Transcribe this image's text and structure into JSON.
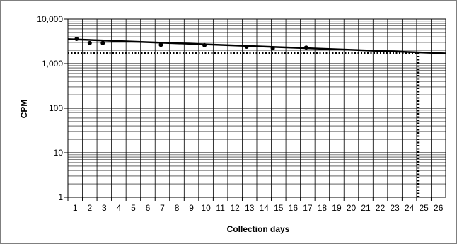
{
  "chart_data": {
    "type": "scatter",
    "title": "",
    "xlabel": "Collection days",
    "ylabel": "CPM",
    "x_categories": [
      "1",
      "2",
      "3",
      "4",
      "5",
      "6",
      "7",
      "8",
      "9",
      "10",
      "11",
      "12",
      "13",
      "14",
      "15",
      "16",
      "17",
      "18",
      "19",
      "20",
      "21",
      "22",
      "23",
      "24",
      "25",
      "26"
    ],
    "y_scale": "log",
    "ylim": [
      1,
      10000
    ],
    "y_tick_values": [
      1,
      10,
      100,
      1000,
      10000
    ],
    "y_tick_labels": [
      "1",
      "10",
      "100",
      "1,000",
      "10,000"
    ],
    "grid": true,
    "series": [
      {
        "kind": "points",
        "x": [
          1.1,
          2.0,
          2.9,
          6.9,
          9.9,
          12.8,
          14.6,
          16.9
        ],
        "y": [
          3600,
          2900,
          2900,
          2650,
          2600,
          2400,
          2200,
          2300
        ]
      },
      {
        "kind": "trend",
        "x": [
          0.5,
          26.5
        ],
        "y": [
          3550,
          1700
        ]
      }
    ],
    "reference_lines": [
      {
        "orientation": "horizontal",
        "y": 1750,
        "x_from": 0.5,
        "x_to": 24.6,
        "style": "dotted"
      },
      {
        "orientation": "vertical",
        "x": 24.6,
        "y_from": 1,
        "y_to": 1750,
        "style": "dotted"
      }
    ]
  },
  "colors": {
    "grid": "#000000",
    "data": "#000000",
    "frame": "#7f7f7f"
  }
}
